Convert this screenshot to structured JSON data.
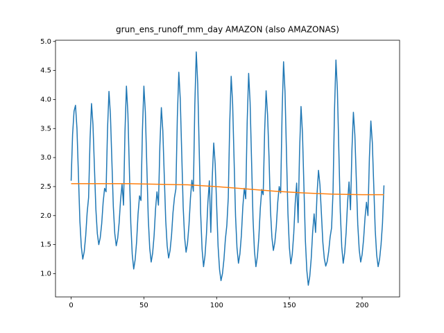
{
  "chart_data": {
    "type": "line",
    "title": "grun_ens_runoff_mm_day AMAZON (also AMAZONAS)",
    "x": [
      0,
      1,
      2,
      3,
      4,
      5,
      6,
      7,
      8,
      9,
      10,
      11,
      12,
      13,
      14,
      15,
      16,
      17,
      18,
      19,
      20,
      21,
      22,
      23,
      24,
      25,
      26,
      27,
      28,
      29,
      30,
      31,
      32,
      33,
      34,
      35,
      36,
      37,
      38,
      39,
      40,
      41,
      42,
      43,
      44,
      45,
      46,
      47,
      48,
      49,
      50,
      51,
      52,
      53,
      54,
      55,
      56,
      57,
      58,
      59,
      60,
      61,
      62,
      63,
      64,
      65,
      66,
      67,
      68,
      69,
      70,
      71,
      72,
      73,
      74,
      75,
      76,
      77,
      78,
      79,
      80,
      81,
      82,
      83,
      84,
      85,
      86,
      87,
      88,
      89,
      90,
      91,
      92,
      93,
      94,
      95,
      96,
      97,
      98,
      99,
      100,
      101,
      102,
      103,
      104,
      105,
      106,
      107,
      108,
      109,
      110,
      111,
      112,
      113,
      114,
      115,
      116,
      117,
      118,
      119,
      120,
      121,
      122,
      123,
      124,
      125,
      126,
      127,
      128,
      129,
      130,
      131,
      132,
      133,
      134,
      135,
      136,
      137,
      138,
      139,
      140,
      141,
      142,
      143,
      144,
      145,
      146,
      147,
      148,
      149,
      150,
      151,
      152,
      153,
      154,
      155,
      156,
      157,
      158,
      159,
      160,
      161,
      162,
      163,
      164,
      165,
      166,
      167,
      168,
      169,
      170,
      171,
      172,
      173,
      174,
      175,
      176,
      177,
      178,
      179,
      180,
      181,
      182,
      183,
      184,
      185,
      186,
      187,
      188,
      189,
      190,
      191,
      192,
      193,
      194,
      195,
      196,
      197,
      198,
      199,
      200,
      201,
      202,
      203,
      204,
      205,
      206,
      207,
      208,
      209,
      210,
      211,
      212,
      213,
      214,
      215
    ],
    "series": [
      {
        "color": "#1f77b4",
        "values": [
          2.6,
          3.4,
          3.8,
          3.9,
          3.5,
          2.71,
          1.91,
          1.46,
          1.25,
          1.38,
          1.65,
          2.05,
          2.31,
          3.32,
          3.93,
          3.57,
          2.84,
          2.11,
          1.69,
          1.5,
          1.62,
          1.86,
          2.23,
          2.47,
          2.41,
          3.48,
          4.14,
          3.74,
          2.94,
          2.15,
          1.69,
          1.48,
          1.61,
          1.88,
          2.28,
          2.54,
          2.18,
          3.44,
          4.23,
          3.76,
          2.81,
          1.87,
          1.33,
          1.08,
          1.24,
          1.55,
          2.03,
          2.34,
          2.26,
          3.47,
          4.23,
          3.78,
          2.87,
          1.96,
          1.44,
          1.2,
          1.35,
          1.65,
          2.11,
          2.41,
          2.18,
          3.21,
          3.86,
          3.47,
          2.69,
          1.92,
          1.48,
          1.27,
          1.4,
          1.66,
          2.05,
          2.31,
          2.46,
          3.7,
          4.47,
          4.01,
          3.08,
          2.15,
          1.62,
          1.37,
          1.53,
          1.84,
          2.3,
          2.61,
          2.42,
          3.9,
          4.82,
          4.27,
          3.16,
          2.05,
          1.42,
          1.12,
          1.31,
          1.68,
          2.23,
          2.6,
          1.71,
          2.66,
          3.25,
          2.89,
          2.18,
          1.47,
          1.07,
          0.88,
          1.0,
          1.24,
          1.59,
          1.83,
          2.31,
          3.6,
          4.4,
          3.92,
          2.95,
          1.99,
          1.44,
          1.18,
          1.34,
          1.66,
          2.15,
          2.47,
          2.29,
          3.62,
          4.45,
          3.95,
          2.95,
          1.95,
          1.39,
          1.12,
          1.29,
          1.62,
          2.12,
          2.45,
          2.36,
          3.46,
          4.15,
          3.74,
          3.01,
          2.09,
          1.62,
          1.4,
          1.54,
          1.81,
          2.23,
          2.5,
          2.39,
          3.78,
          4.65,
          4.13,
          3.08,
          2.04,
          1.45,
          1.17,
          1.34,
          1.69,
          2.21,
          2.56,
          1.88,
          3.11,
          3.88,
          3.42,
          2.49,
          1.57,
          1.05,
          0.8,
          0.95,
          1.26,
          1.72,
          2.03,
          1.71,
          2.37,
          2.78,
          2.53,
          2.04,
          1.54,
          1.26,
          1.13,
          1.21,
          1.38,
          1.63,
          1.79,
          2.41,
          3.81,
          4.68,
          4.16,
          3.11,
          2.06,
          1.46,
          1.18,
          1.36,
          1.71,
          2.23,
          2.58,
          2.1,
          3.14,
          3.78,
          3.39,
          2.62,
          1.85,
          1.41,
          1.2,
          1.33,
          1.59,
          1.97,
          2.23,
          2.0,
          3.0,
          3.63,
          3.26,
          2.51,
          1.75,
          1.32,
          1.12,
          1.25,
          1.5,
          1.87,
          2.52
        ]
      },
      {
        "color": "#ff7f0e",
        "x": [
          0,
          40,
          60,
          80,
          100,
          120,
          140,
          160,
          180,
          200,
          215
        ],
        "values": [
          2.55,
          2.55,
          2.54,
          2.53,
          2.5,
          2.46,
          2.42,
          2.39,
          2.37,
          2.36,
          2.36
        ]
      }
    ],
    "xlim": [
      -10.75,
      225.75
    ],
    "xticks": [
      0,
      50,
      100,
      150,
      200
    ],
    "ylim": [
      0.599,
      5.021
    ],
    "yticks": [
      {
        "value": 1,
        "label": "1.0"
      },
      {
        "value": 1.5,
        "label": "1.5"
      },
      {
        "value": 2,
        "label": "2.0"
      },
      {
        "value": 2.5,
        "label": "2.5"
      },
      {
        "value": 3,
        "label": "3.0"
      },
      {
        "value": 3.5,
        "label": "3.5"
      },
      {
        "value": 4,
        "label": "4.0"
      },
      {
        "value": 4.5,
        "label": "4.5"
      },
      {
        "value": 5,
        "label": "5.0"
      }
    ]
  }
}
